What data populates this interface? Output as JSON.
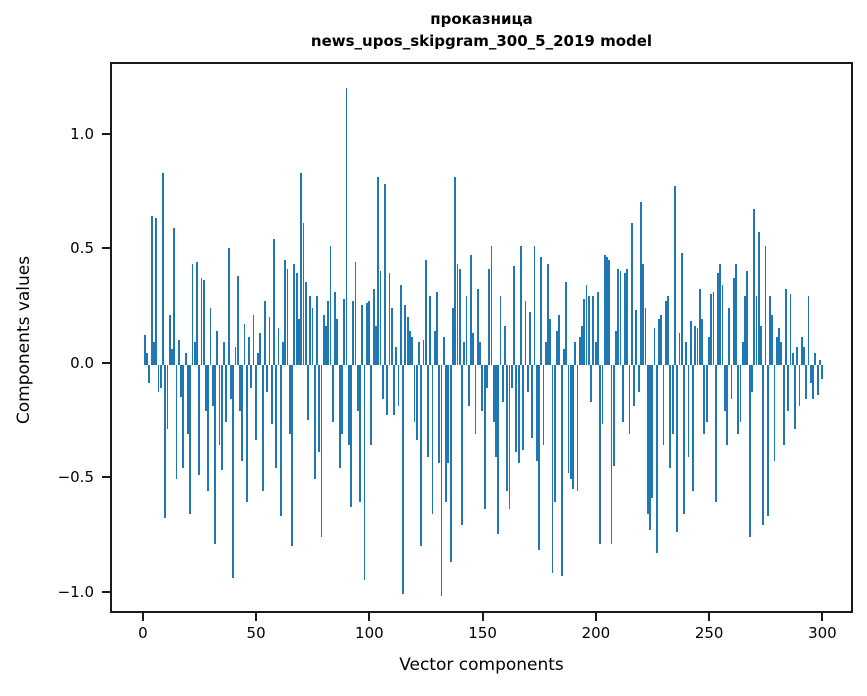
{
  "chart_data": {
    "type": "bar",
    "title_line1": "проказница",
    "title_line2": "news_upos_skipgram_300_5_2019 model",
    "xlabel": "Vector components",
    "ylabel": "Components values",
    "bar_color": "#1f77b4",
    "axis_color": "#1a1a1a",
    "xlim": [
      -14.5,
      313.5
    ],
    "ylim": [
      -1.092,
      1.314
    ],
    "xticks": [
      0,
      50,
      100,
      150,
      200,
      250,
      300
    ],
    "yticks": [
      -1.0,
      -0.5,
      0.0,
      0.5,
      1.0
    ],
    "n_components": 300,
    "values": [
      0.13,
      0.05,
      -0.08,
      0.65,
      0.1,
      0.64,
      -0.12,
      -0.1,
      0.84,
      -0.67,
      -0.28,
      0.22,
      0.07,
      0.6,
      -0.5,
      0.11,
      -0.14,
      -0.45,
      0.05,
      -0.3,
      -0.65,
      0.44,
      0.1,
      0.45,
      -0.48,
      0.38,
      0.37,
      -0.2,
      -0.55,
      0.25,
      -0.18,
      -0.78,
      0.15,
      -0.35,
      -0.46,
      0.1,
      -0.25,
      0.51,
      -0.15,
      -0.93,
      0.08,
      0.39,
      -0.2,
      -0.42,
      0.18,
      -0.6,
      0.12,
      -0.1,
      0.22,
      -0.33,
      0.05,
      0.14,
      -0.55,
      0.28,
      -0.12,
      0.21,
      -0.26,
      0.55,
      -0.45,
      0.16,
      -0.66,
      0.1,
      0.46,
      0.42,
      -0.3,
      -0.79,
      0.44,
      0.4,
      0.2,
      0.84,
      0.62,
      0.36,
      -0.24,
      0.3,
      0.25,
      -0.5,
      0.3,
      -0.38,
      -0.75,
      0.22,
      0.17,
      0.28,
      0.52,
      -0.25,
      0.32,
      0.2,
      -0.45,
      -0.3,
      0.29,
      1.21,
      -0.35,
      -0.62,
      0.28,
      0.45,
      -0.2,
      -0.6,
      0.26,
      -0.94,
      0.27,
      0.28,
      -0.35,
      0.33,
      0.17,
      0.82,
      0.41,
      -0.15,
      0.79,
      -0.22,
      0.4,
      0.25,
      -0.22,
      0.08,
      -0.18,
      0.35,
      -1.0,
      0.26,
      0.21,
      0.15,
      0.12,
      -0.25,
      -0.33,
      0.1,
      -0.79,
      0.11,
      0.46,
      -0.4,
      0.3,
      -0.65,
      0.15,
      0.32,
      -0.43,
      -1.01,
      0.12,
      -0.6,
      -0.43,
      -0.86,
      0.25,
      0.82,
      0.44,
      0.42,
      -0.7,
      0.1,
      0.3,
      -0.18,
      0.48,
      0.14,
      -0.3,
      0.33,
      0.1,
      -0.2,
      -0.63,
      -0.1,
      0.42,
      0.52,
      -0.25,
      -0.4,
      -0.74,
      0.3,
      -0.16,
      0.17,
      -0.55,
      -0.63,
      -0.1,
      0.43,
      -0.38,
      -0.43,
      0.52,
      -0.37,
      0.28,
      -0.12,
      0.23,
      -0.32,
      0.52,
      -0.42,
      -0.81,
      0.47,
      -0.35,
      0.1,
      0.44,
      0.2,
      -0.91,
      -0.6,
      0.15,
      0.22,
      -0.92,
      0.07,
      0.36,
      -0.47,
      -0.5,
      -0.54,
      0.1,
      -0.55,
      0.12,
      0.17,
      0.29,
      0.35,
      0.3,
      -0.16,
      0.3,
      0.1,
      0.32,
      -0.78,
      -0.26,
      0.48,
      0.47,
      0.46,
      -0.78,
      -0.44,
      0.15,
      0.42,
      0.41,
      -0.25,
      0.4,
      0.42,
      -0.3,
      0.62,
      -0.18,
      0.24,
      -0.12,
      0.71,
      0.44,
      0.25,
      -0.65,
      -0.72,
      -0.58,
      0.16,
      -0.82,
      0.2,
      0.22,
      -0.35,
      0.28,
      0.3,
      -0.45,
      -0.3,
      0.78,
      -0.73,
      0.14,
      0.49,
      -0.65,
      0.1,
      -0.4,
      0.19,
      -0.55,
      0.17,
      0.16,
      0.33,
      0.2,
      -0.3,
      -0.25,
      0.12,
      0.31,
      0.32,
      -0.6,
      0.4,
      0.44,
      0.35,
      -0.2,
      -0.35,
      0.25,
      -0.15,
      0.38,
      0.44,
      -0.3,
      -0.25,
      0.1,
      0.3,
      0.41,
      -0.75,
      -0.12,
      0.68,
      0.3,
      0.58,
      0.17,
      -0.7,
      0.52,
      -0.66,
      0.3,
      0.22,
      -0.42,
      0.12,
      0.16,
      0.1,
      -0.35,
      0.33,
      -0.2,
      0.31,
      0.05,
      -0.28,
      0.08,
      -0.18,
      0.12,
      0.08,
      -0.15,
      0.3,
      -0.08,
      -0.15,
      0.05,
      -0.13,
      0.02,
      -0.06
    ]
  }
}
